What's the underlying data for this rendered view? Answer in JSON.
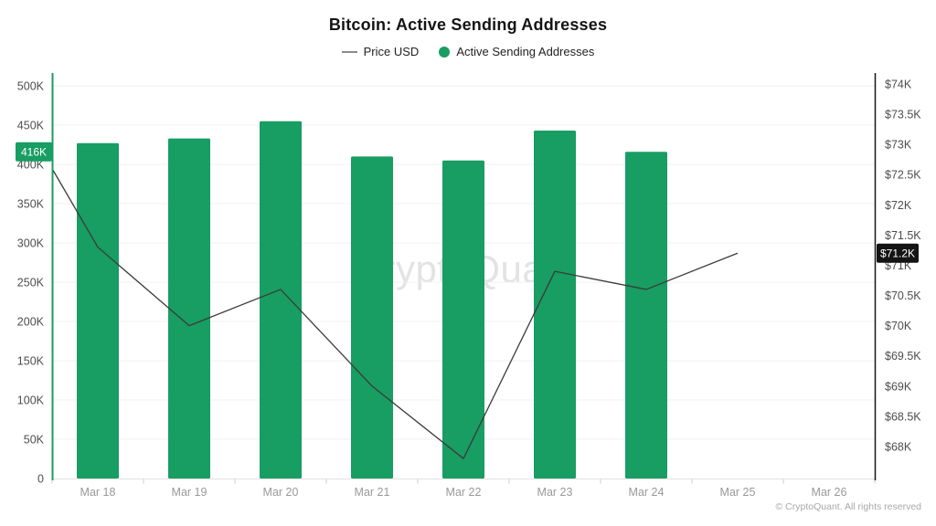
{
  "header": {
    "title": "Bitcoin: Active Sending Addresses"
  },
  "legend": {
    "items": [
      {
        "label": "Price USD",
        "type": "line",
        "color": "#8c8c8c"
      },
      {
        "label": "Active Sending Addresses",
        "type": "bar",
        "color": "#189d62"
      }
    ]
  },
  "watermark": {
    "text": "CryptoQuant"
  },
  "footer": {
    "copyright": "© CryptoQuant. All rights reserved"
  },
  "colors": {
    "bar_green": "#189d62",
    "line_dark": "#3b3b3b",
    "badge_black": "#141414",
    "grid": "#f0f0f0",
    "axis_label": "#4d4d4d",
    "x_label": "#999999",
    "x_axis_line": "#e2e2e2",
    "tick": "#cccccc",
    "badge_text": "#ffffff"
  },
  "chart_data": {
    "type": "bar",
    "title": "Bitcoin: Active Sending Addresses",
    "categories": [
      "Mar 18",
      "Mar 19",
      "Mar 20",
      "Mar 21",
      "Mar 22",
      "Mar 23",
      "Mar 24",
      "Mar 25",
      "Mar 26"
    ],
    "series": [
      {
        "name": "Active Sending Addresses",
        "type": "bar",
        "axis": "left",
        "unit": "addresses",
        "color": "#189d62",
        "values": [
          427000,
          433000,
          455000,
          410000,
          405000,
          443000,
          416000,
          null,
          null
        ]
      },
      {
        "name": "Price USD",
        "type": "line",
        "axis": "right",
        "unit": "USD",
        "color": "#3b3b3b",
        "edge_start_value": 72600,
        "values": [
          71300,
          70000,
          70600,
          69000,
          67800,
          70900,
          70600,
          71200,
          null
        ]
      }
    ],
    "left_axis": {
      "ticks": [
        "500K",
        "450K",
        "400K",
        "350K",
        "300K",
        "250K",
        "200K",
        "150K",
        "100K",
        "50K",
        "0"
      ],
      "min": 0,
      "max": 500000,
      "current_value_label": "416K"
    },
    "right_axis": {
      "ticks": [
        "$74K",
        "$73.5K",
        "$73K",
        "$72.5K",
        "$72K",
        "$71.5K",
        "$71K",
        "$70.5K",
        "$70K",
        "$69.5K",
        "$69K",
        "$68.5K",
        "$68K"
      ],
      "min": 68000,
      "max": 74000,
      "current_value_label": "$71.2K"
    },
    "grid": "horizontal",
    "legend_position": "top"
  }
}
